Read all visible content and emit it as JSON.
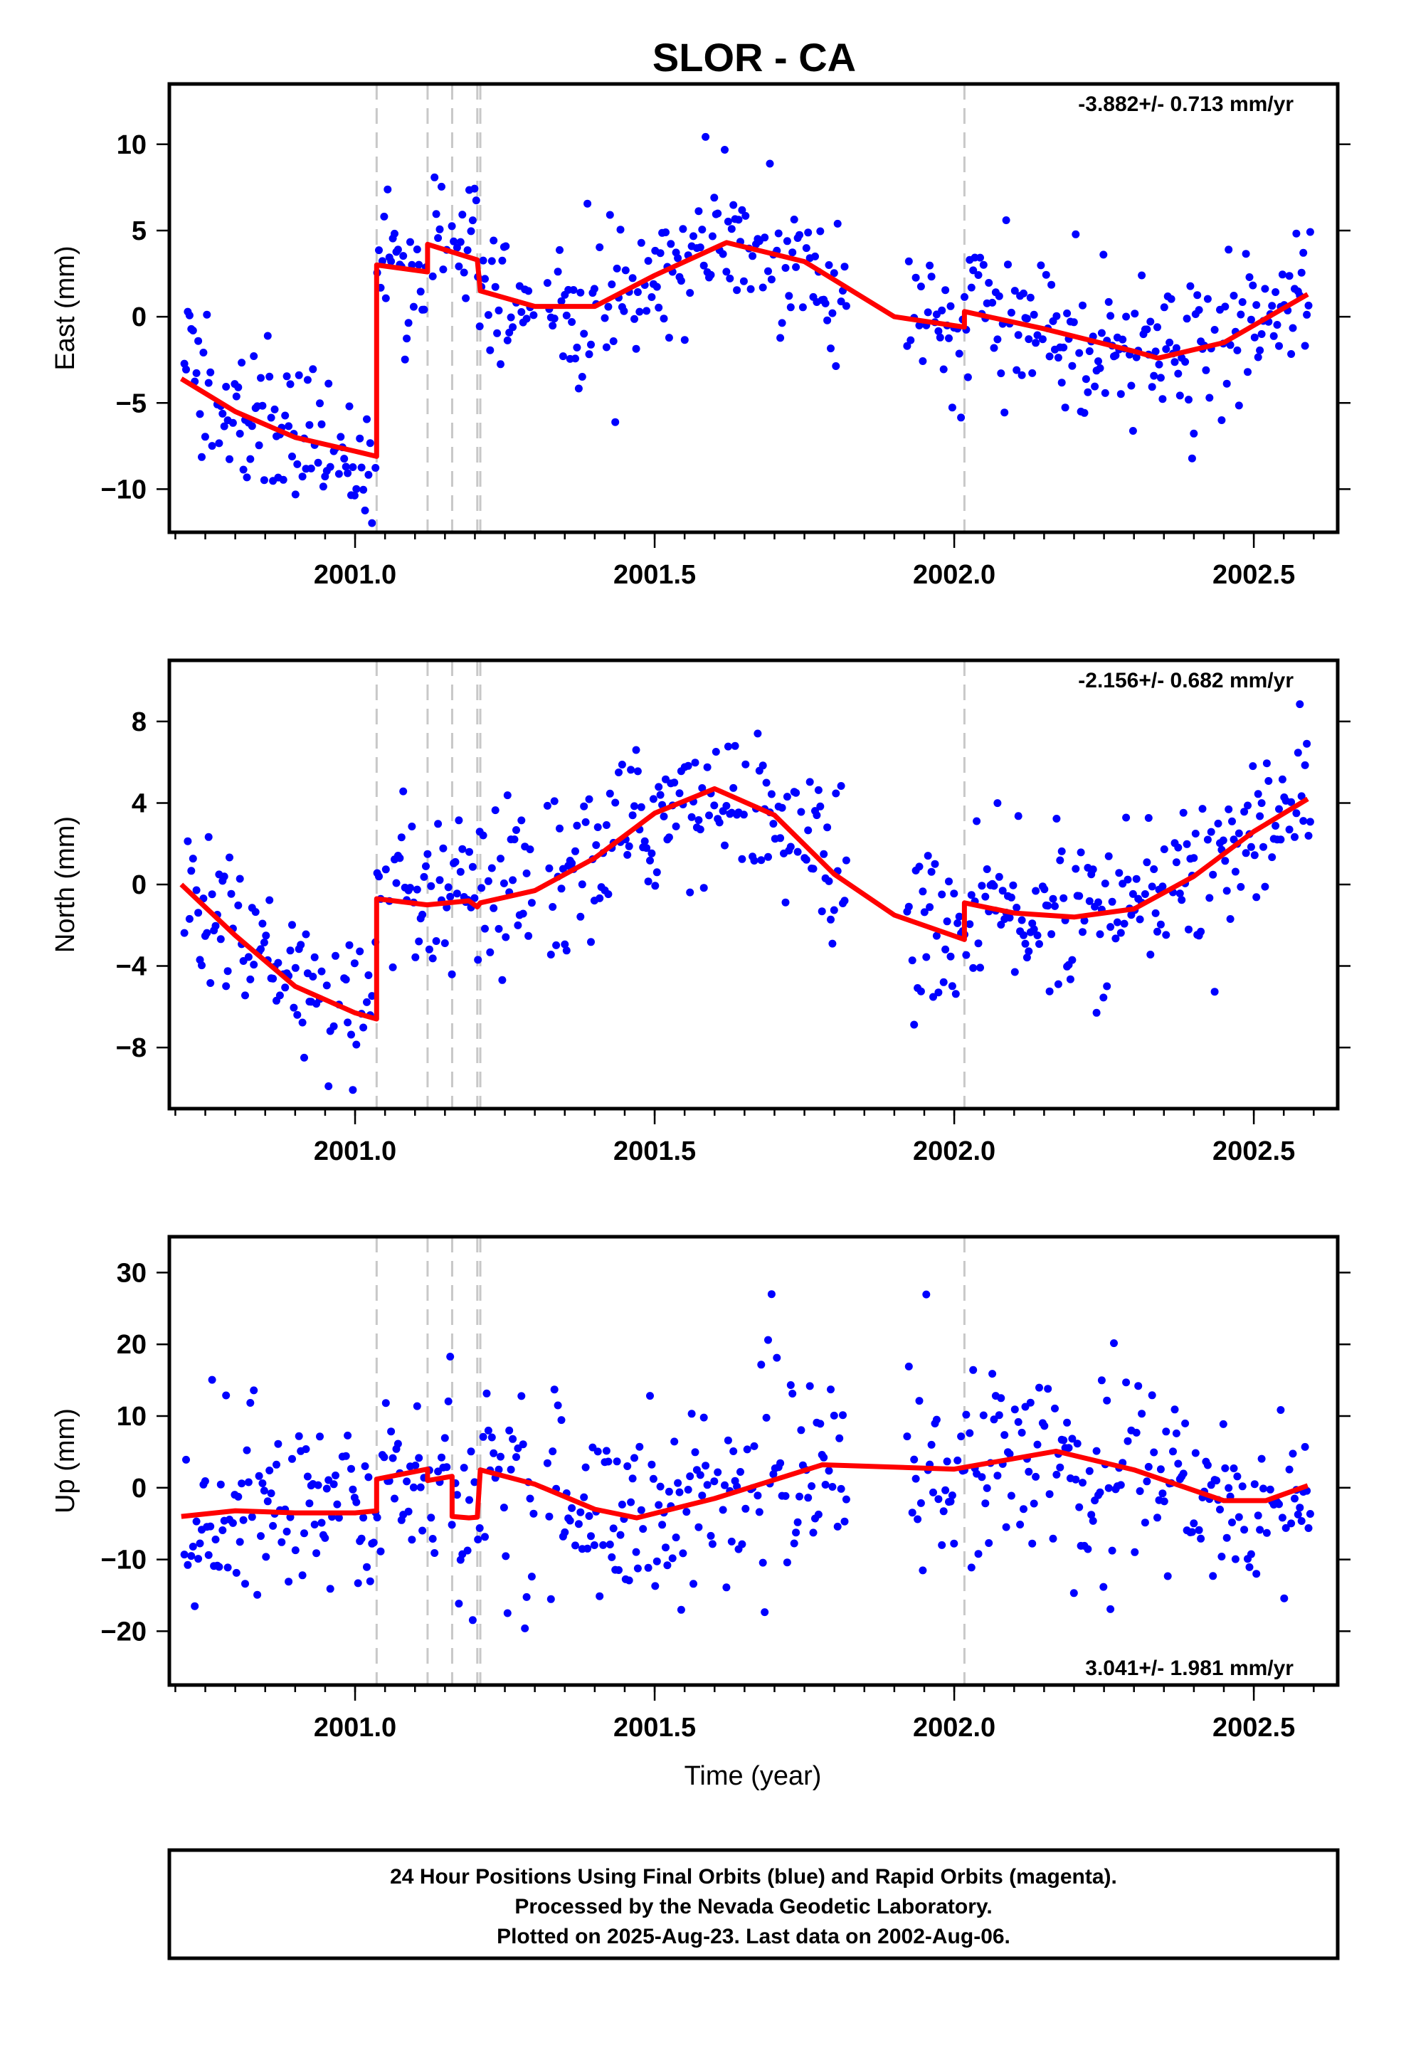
{
  "figure": {
    "title": "SLOR - CA",
    "xlabel": "Time (year)"
  },
  "footer": {
    "lines": [
      "24 Hour Positions Using Final Orbits (blue) and Rapid Orbits (magenta).",
      "Processed by the Nevada Geodetic Laboratory.",
      "Plotted on 2025-Aug-23. Last data on 2002-Aug-06."
    ]
  },
  "colors": {
    "final_orbits": "#0000ff",
    "model": "#ff0000",
    "event_lines": "#c8c8c8",
    "frame": "#000000"
  },
  "chart_data": [
    {
      "type": "scatter",
      "component": "east",
      "ylabel": "East (mm)",
      "rate_label": "-3.882+/- 0.713 mm/yr",
      "rate_placement": "top-right",
      "xlim": [
        2000.69,
        2002.64
      ],
      "ylim": [
        -12.5,
        13.5
      ],
      "xticks": [
        2001.0,
        2001.5,
        2002.0,
        2002.5
      ],
      "xtick_labels": [
        "2001.0",
        "2001.5",
        "2002.0",
        "2002.5"
      ],
      "yticks": [
        -10,
        -5,
        0,
        5,
        10
      ],
      "ytick_labels": [
        "−10",
        "−5",
        "0",
        "5",
        "10"
      ],
      "grid": false,
      "event_lines_x": [
        2001.036,
        2001.121,
        2001.162,
        2001.204,
        2001.209,
        2002.017
      ],
      "model": {
        "x": [
          2000.71,
          2000.8,
          2000.9,
          2001.0,
          2001.036,
          2001.036,
          2001.121,
          2001.121,
          2001.204,
          2001.209,
          2001.3,
          2001.4,
          2001.5,
          2001.62,
          2001.75,
          2001.9,
          2002.017,
          2002.017,
          2002.15,
          2002.3,
          2002.34,
          2002.45,
          2002.59
        ],
        "y": [
          -3.6,
          -5.5,
          -7.0,
          -7.8,
          -8.1,
          3.0,
          2.6,
          4.2,
          3.3,
          1.5,
          0.6,
          0.6,
          2.4,
          4.3,
          3.2,
          0.0,
          -0.6,
          0.3,
          -0.7,
          -2.0,
          -2.4,
          -1.5,
          1.3
        ]
      },
      "points_summary": "daily positions, roughly 600 samples scattered about the model with about 2 mm spread"
    },
    {
      "type": "scatter",
      "component": "north",
      "ylabel": "North (mm)",
      "rate_label": "-2.156+/- 0.682 mm/yr",
      "rate_placement": "top-right",
      "xlim": [
        2000.69,
        2002.64
      ],
      "ylim": [
        -11.0,
        11.0
      ],
      "xticks": [
        2001.0,
        2001.5,
        2002.0,
        2002.5
      ],
      "xtick_labels": [
        "2001.0",
        "2001.5",
        "2002.0",
        "2002.5"
      ],
      "yticks": [
        -8,
        -4,
        0,
        4,
        8
      ],
      "ytick_labels": [
        "−8",
        "−4",
        "0",
        "4",
        "8"
      ],
      "grid": false,
      "event_lines_x": [
        2001.036,
        2001.121,
        2001.162,
        2001.204,
        2001.209,
        2002.017
      ],
      "model": {
        "x": [
          2000.71,
          2000.8,
          2000.9,
          2001.0,
          2001.036,
          2001.036,
          2001.12,
          2001.19,
          2001.204,
          2001.209,
          2001.3,
          2001.4,
          2001.5,
          2001.6,
          2001.7,
          2001.8,
          2001.9,
          2002.017,
          2002.017,
          2002.1,
          2002.2,
          2002.3,
          2002.4,
          2002.5,
          2002.59
        ],
        "y": [
          0.0,
          -2.5,
          -5.0,
          -6.3,
          -6.6,
          -0.7,
          -1.0,
          -0.8,
          -1.1,
          -0.9,
          -0.3,
          1.3,
          3.5,
          4.7,
          3.4,
          0.5,
          -1.5,
          -2.7,
          -0.9,
          -1.4,
          -1.6,
          -1.2,
          0.4,
          2.6,
          4.2
        ]
      },
      "points_summary": "daily positions, roughly 600 samples scattered about the model with about 2 mm spread"
    },
    {
      "type": "scatter",
      "component": "up",
      "ylabel": "Up (mm)",
      "rate_label": "3.041+/- 1.981 mm/yr",
      "rate_placement": "bottom-right",
      "xlim": [
        2000.69,
        2002.64
      ],
      "ylim": [
        -27.5,
        35.0
      ],
      "xticks": [
        2001.0,
        2001.5,
        2002.0,
        2002.5
      ],
      "xtick_labels": [
        "2001.0",
        "2001.5",
        "2002.0",
        "2002.5"
      ],
      "yticks": [
        -20,
        -10,
        0,
        10,
        20,
        30
      ],
      "ytick_labels": [
        "−20",
        "−10",
        "0",
        "10",
        "20",
        "30"
      ],
      "grid": false,
      "event_lines_x": [
        2001.036,
        2001.121,
        2001.162,
        2001.204,
        2001.209,
        2002.017
      ],
      "model": {
        "x": [
          2000.71,
          2000.8,
          2000.9,
          2001.0,
          2001.036,
          2001.036,
          2001.121,
          2001.121,
          2001.162,
          2001.162,
          2001.19,
          2001.204,
          2001.209,
          2001.3,
          2001.4,
          2001.47,
          2001.6,
          2001.78,
          2002.0,
          2002.17,
          2002.3,
          2002.45,
          2002.52,
          2002.59
        ],
        "y": [
          -4.0,
          -3.2,
          -3.5,
          -3.5,
          -3.2,
          1.2,
          2.6,
          1.0,
          1.6,
          -4.0,
          -4.2,
          -4.1,
          2.5,
          0.5,
          -3.0,
          -4.2,
          -1.5,
          3.2,
          2.6,
          5.1,
          2.5,
          -1.8,
          -1.8,
          0.3
        ]
      },
      "points_summary": "daily positions, roughly 600 samples scattered about the model with about 7 mm spread"
    }
  ]
}
